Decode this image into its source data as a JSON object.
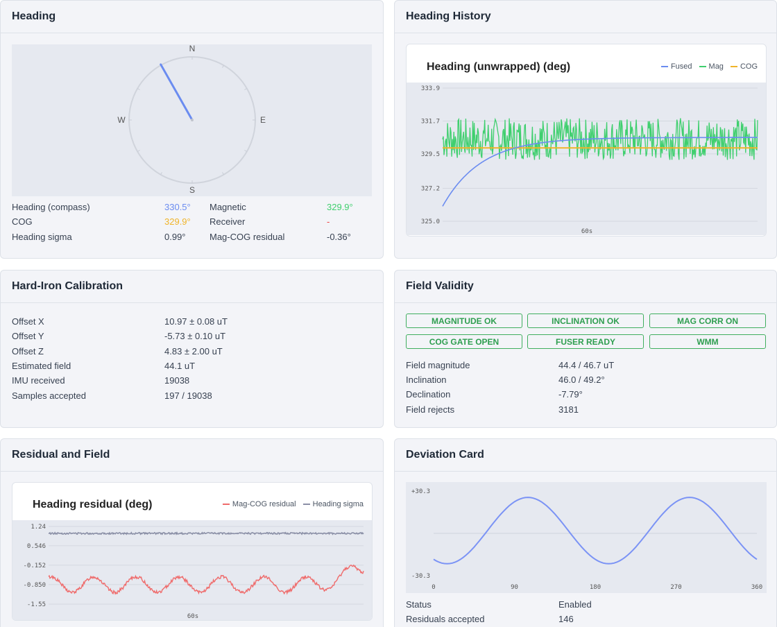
{
  "heading_card": {
    "title": "Heading",
    "compass": {
      "n": "N",
      "e": "E",
      "s": "S",
      "w": "W",
      "heading_deg": 330.5
    },
    "rows": [
      {
        "label": "Heading (compass)",
        "value": "330.5°",
        "color": "#6b8cf0"
      },
      {
        "label": "COG",
        "value": "329.9°",
        "color": "#f0b429"
      },
      {
        "label": "Heading sigma",
        "value": "0.99°",
        "color": "#1f2937"
      }
    ],
    "rows_right": [
      {
        "label": "Magnetic",
        "value": "329.9°",
        "color": "#3fcf6e"
      },
      {
        "label": "Receiver",
        "value": "-",
        "color": "#ef4444"
      },
      {
        "label": "Mag-COG residual",
        "value": "-0.36°",
        "color": "#1f2937"
      }
    ]
  },
  "history_card": {
    "title": "Heading History",
    "chart_title": "Heading (unwrapped) (deg)",
    "legend": [
      {
        "name": "Fused",
        "color": "#6b8cf0"
      },
      {
        "name": "Mag",
        "color": "#3fcf6e"
      },
      {
        "name": "COG",
        "color": "#f0b429"
      }
    ],
    "x_label": "60s"
  },
  "hardiron_card": {
    "title": "Hard-Iron Calibration",
    "rows": [
      {
        "label": "Offset X",
        "value": "10.97 ± 0.08 uT"
      },
      {
        "label": "Offset Y",
        "value": "-5.73 ± 0.10 uT"
      },
      {
        "label": "Offset Z",
        "value": "4.83 ± 2.00 uT"
      },
      {
        "label": "Estimated field",
        "value": "44.1 uT"
      },
      {
        "label": "IMU received",
        "value": "19038"
      },
      {
        "label": "Samples accepted",
        "value": "197 / 19038"
      }
    ]
  },
  "validity_card": {
    "title": "Field Validity",
    "badges": [
      "MAGNITUDE OK",
      "INCLINATION OK",
      "MAG CORR ON",
      "COG GATE OPEN",
      "FUSER READY",
      "WMM"
    ],
    "rows": [
      {
        "label": "Field magnitude",
        "value": "44.4 / 46.7 uT"
      },
      {
        "label": "Inclination",
        "value": "46.0 / 49.2°"
      },
      {
        "label": "Declination",
        "value": "-7.79°"
      },
      {
        "label": "Field rejects",
        "value": "3181"
      }
    ]
  },
  "residual_card": {
    "title": "Residual and Field",
    "chart_title": "Heading residual (deg)",
    "legend": [
      {
        "name": "Mag-COG residual",
        "color": "#ef6b6b"
      },
      {
        "name": "Heading sigma",
        "color": "#8a8fa6"
      }
    ],
    "x_label": "60s"
  },
  "deviation_card": {
    "title": "Deviation Card",
    "rows": [
      {
        "label": "Status",
        "value": "Enabled"
      },
      {
        "label": "Residuals accepted",
        "value": "146"
      }
    ]
  },
  "chart_data": [
    {
      "type": "line",
      "title": "Heading (unwrapped) (deg)",
      "xlabel": "60s",
      "ylabel": "",
      "ylim": [
        325.0,
        333.9
      ],
      "yticks": [
        "333.9",
        "331.7",
        "329.5",
        "327.2",
        "325.0"
      ],
      "series": [
        {
          "name": "Fused",
          "color": "#6b8cf0",
          "start": 326.0,
          "end": 330.6
        },
        {
          "name": "Mag",
          "color": "#3fcf6e",
          "mean": 330.5,
          "noise": 1.4
        },
        {
          "name": "COG",
          "color": "#f0b429",
          "value": 329.9
        }
      ]
    },
    {
      "type": "line",
      "title": "Heading residual (deg)",
      "xlabel": "60s",
      "ylabel": "",
      "ylim": [
        -1.55,
        1.24
      ],
      "yticks": [
        "1.24",
        "0.546",
        "-0.152",
        "-0.850",
        "-1.55"
      ],
      "series": [
        {
          "name": "Mag-COG residual",
          "color": "#ef6b6b",
          "mean": -0.85,
          "amplitude": 0.35,
          "last": -0.36
        },
        {
          "name": "Heading sigma",
          "color": "#8a8fa6",
          "value": 0.99
        }
      ]
    },
    {
      "type": "line",
      "title": "",
      "xlabel": "",
      "ylabel": "",
      "xlim": [
        0,
        360
      ],
      "ylim": [
        -30.3,
        30.3
      ],
      "xticks": [
        "0",
        "90",
        "180",
        "270",
        "360"
      ],
      "yticks": [
        "+30.3",
        "-30.3"
      ],
      "series": [
        {
          "name": "",
          "color": "#7b93f5",
          "amplitude": 27,
          "cycles": 2,
          "phase_deg": 15
        }
      ]
    }
  ]
}
